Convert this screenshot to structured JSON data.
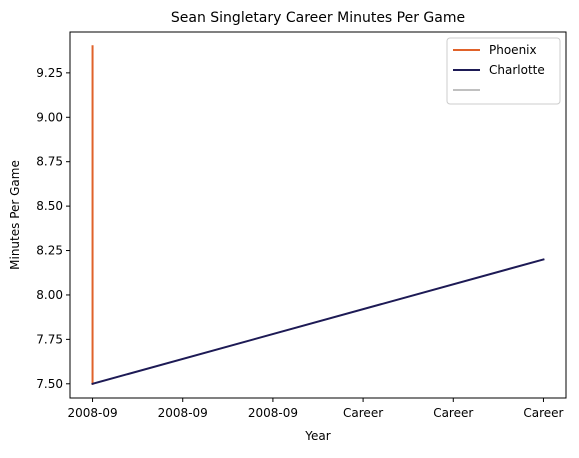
{
  "chart_data": {
    "type": "line",
    "title": "Sean Singletary Career Minutes Per Game",
    "xlabel": "Year",
    "ylabel": "Minutes Per Game",
    "x_tick_labels": [
      "2008-09",
      "2008-09",
      "2008-09",
      "Career",
      "Career",
      "Career"
    ],
    "ylim": [
      7.42,
      9.48
    ],
    "y_ticks": [
      7.5,
      7.75,
      8.0,
      8.25,
      8.5,
      8.75,
      9.0,
      9.25
    ],
    "y_tick_labels": [
      "7.50",
      "7.75",
      "8.00",
      "8.25",
      "8.50",
      "8.75",
      "9.00",
      "9.25"
    ],
    "grid": false,
    "legend_position": "top-right",
    "series": [
      {
        "name": "Phoenix",
        "color": "#e0622a",
        "points": [
          {
            "x": 0,
            "y": 9.4
          },
          {
            "x": 0,
            "y": 7.5
          }
        ]
      },
      {
        "name": "Charlotte",
        "color": "#1d1a55",
        "points": [
          {
            "x": 0,
            "y": 7.5
          },
          {
            "x": 5,
            "y": 8.2
          }
        ]
      },
      {
        "name": "",
        "color": "#c0c0c0",
        "points": []
      }
    ]
  }
}
